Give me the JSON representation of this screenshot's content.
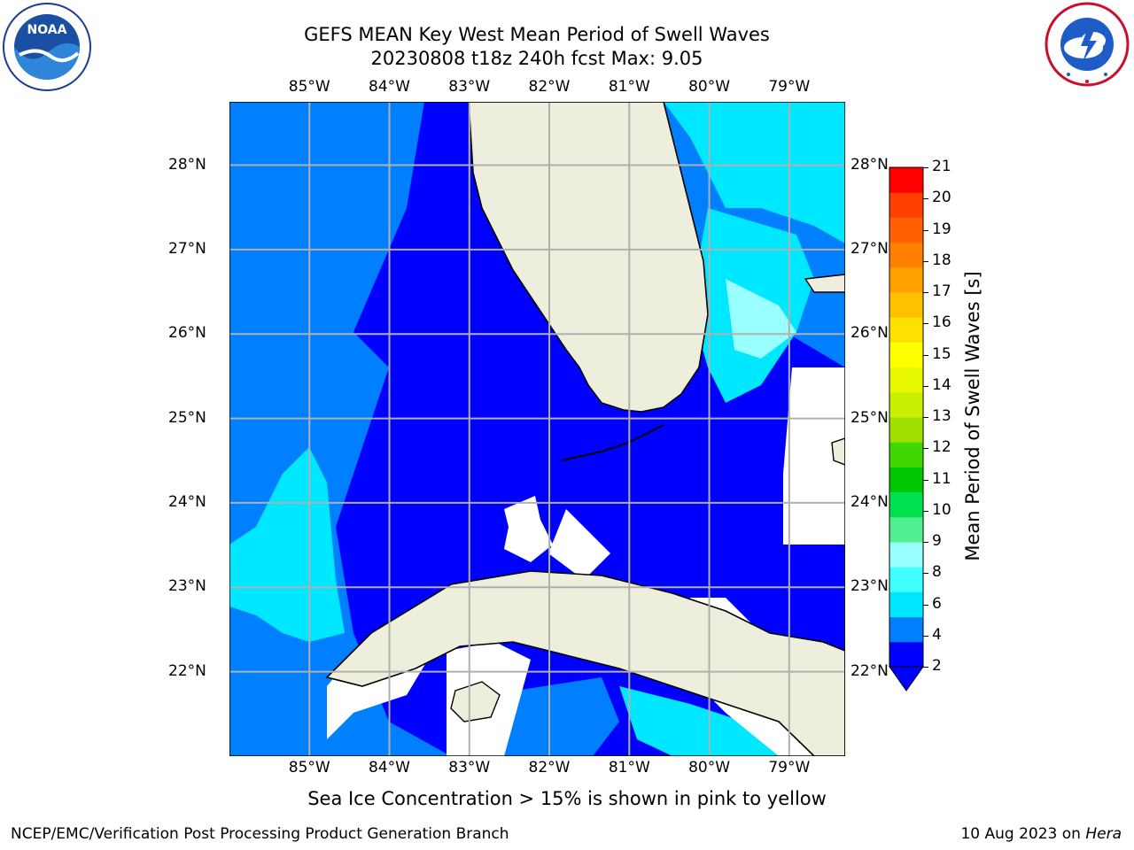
{
  "title_line1": "GEFS MEAN Key West Mean Period of Swell Waves",
  "title_line2": "20230808 t18z 240h fcst   Max: 9.05",
  "logos": {
    "left": "noaa-logo",
    "left_text": "NOAA",
    "right": "nws-logo"
  },
  "map": {
    "longitudes": [
      "85°W",
      "84°W",
      "83°W",
      "82°W",
      "81°W",
      "80°W",
      "79°W"
    ],
    "latitudes": [
      "28°N",
      "27°N",
      "26°N",
      "25°N",
      "24°N",
      "23°N",
      "22°N"
    ],
    "extent": {
      "lon_min": -86,
      "lon_max": -78.3,
      "lat_min": 21.0,
      "lat_max": 28.75
    }
  },
  "colorbar": {
    "title": "Mean Period of Swell Waves [s]",
    "ticks": [
      "21",
      "20",
      "19",
      "18",
      "17",
      "16",
      "15",
      "14",
      "13",
      "12",
      "11",
      "10",
      "9",
      "8",
      "6",
      "4",
      "2"
    ],
    "colors": [
      "#0000ff",
      "#0080ff",
      "#00e8ff",
      "#40ffff",
      "#99ffff",
      "#50f090",
      "#00e050",
      "#00c800",
      "#40d800",
      "#a0e000",
      "#c8f000",
      "#e8f800",
      "#ffff00",
      "#ffe000",
      "#ffc000",
      "#ffa000",
      "#ff8000",
      "#ff6000",
      "#ff4000",
      "#ff0000"
    ],
    "under_color": "#0000ff"
  },
  "note": "Sea Ice Concentration > 15% is shown in pink to yellow",
  "footer_left": "NCEP/EMC/Verification Post Processing Product Generation Branch",
  "footer_date": "10 Aug 2023 on",
  "footer_host": "Hera"
}
